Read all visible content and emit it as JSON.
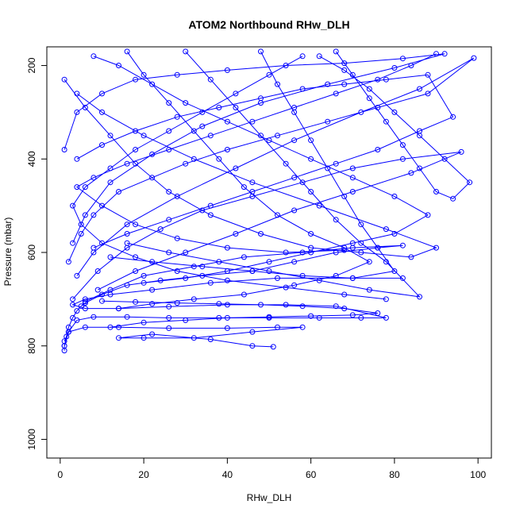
{
  "chart_data": {
    "type": "line",
    "title": "ATOM2 Northbound RHw_DLH",
    "xlabel": "RHw_DLH",
    "ylabel": "Pressure (mbar)",
    "xlim": [
      0,
      100
    ],
    "ylim": [
      1040,
      160
    ],
    "y_reversed": true,
    "x_ticks": [
      0,
      20,
      40,
      60,
      80,
      100
    ],
    "y_ticks": [
      200,
      400,
      600,
      800,
      1000
    ],
    "grid": false,
    "legend": "none",
    "marker": "open-circle",
    "color": "#0000ff",
    "series": [
      {
        "points": [
          [
            1,
            810
          ],
          [
            1,
            800
          ],
          [
            1.5,
            780
          ],
          [
            2,
            760
          ],
          [
            3,
            740
          ],
          [
            4,
            725
          ],
          [
            5,
            715
          ],
          [
            6,
            708
          ],
          [
            10,
            690
          ],
          [
            16,
            670
          ],
          [
            24,
            660
          ],
          [
            34,
            650
          ],
          [
            46,
            640
          ],
          [
            56,
            620
          ],
          [
            66,
            600
          ],
          [
            76,
            590
          ],
          [
            82,
            585
          ],
          [
            70,
            590
          ],
          [
            58,
            600
          ],
          [
            44,
            610
          ],
          [
            32,
            630
          ],
          [
            20,
            650
          ],
          [
            12,
            680
          ],
          [
            6,
            705
          ]
        ]
      },
      {
        "points": [
          [
            1,
            800
          ],
          [
            2,
            770
          ],
          [
            4,
            745
          ],
          [
            8,
            738
          ],
          [
            16,
            738
          ],
          [
            26,
            740
          ],
          [
            38,
            740
          ],
          [
            50,
            740
          ],
          [
            62,
            740
          ],
          [
            72,
            740
          ],
          [
            78,
            740
          ],
          [
            66,
            715
          ],
          [
            54,
            712
          ],
          [
            40,
            712
          ],
          [
            26,
            716
          ],
          [
            14,
            720
          ],
          [
            6,
            720
          ],
          [
            3,
            712
          ],
          [
            6,
            700
          ],
          [
            12,
            690
          ],
          [
            22,
            680
          ],
          [
            36,
            665
          ],
          [
            52,
            655
          ],
          [
            70,
            655
          ],
          [
            82,
            655
          ]
        ]
      },
      {
        "points": [
          [
            1,
            790
          ],
          [
            2,
            770
          ],
          [
            6,
            760
          ],
          [
            14,
            760
          ],
          [
            26,
            762
          ],
          [
            40,
            762
          ],
          [
            52,
            760
          ],
          [
            58,
            760
          ],
          [
            46,
            770
          ],
          [
            32,
            783
          ],
          [
            20,
            783
          ],
          [
            14,
            783
          ],
          [
            22,
            775
          ],
          [
            36,
            786
          ],
          [
            46,
            800
          ],
          [
            51,
            802
          ]
        ]
      },
      {
        "points": [
          [
            2,
            620
          ],
          [
            5,
            560
          ],
          [
            8,
            520
          ],
          [
            14,
            470
          ],
          [
            22,
            440
          ],
          [
            30,
            410
          ],
          [
            40,
            380
          ],
          [
            52,
            350
          ],
          [
            64,
            320
          ],
          [
            76,
            290
          ],
          [
            88,
            260
          ],
          [
            99,
            184
          ],
          [
            86,
            250
          ],
          [
            72,
            300
          ],
          [
            56,
            360
          ],
          [
            42,
            420
          ],
          [
            28,
            480
          ],
          [
            16,
            540
          ],
          [
            8,
            600
          ],
          [
            4,
            650
          ]
        ]
      },
      {
        "points": [
          [
            1,
            380
          ],
          [
            4,
            300
          ],
          [
            10,
            260
          ],
          [
            18,
            230
          ],
          [
            28,
            220
          ],
          [
            40,
            210
          ],
          [
            54,
            200
          ],
          [
            68,
            195
          ],
          [
            82,
            185
          ],
          [
            92,
            175
          ],
          [
            80,
            205
          ],
          [
            64,
            240
          ],
          [
            48,
            280
          ],
          [
            34,
            330
          ],
          [
            22,
            390
          ],
          [
            12,
            450
          ],
          [
            6,
            520
          ],
          [
            3,
            580
          ]
        ]
      },
      {
        "points": [
          [
            1,
            230
          ],
          [
            6,
            290
          ],
          [
            12,
            350
          ],
          [
            18,
            410
          ],
          [
            26,
            470
          ],
          [
            36,
            520
          ],
          [
            48,
            560
          ],
          [
            60,
            590
          ],
          [
            72,
            600
          ],
          [
            84,
            610
          ],
          [
            90,
            590
          ],
          [
            78,
            550
          ],
          [
            62,
            500
          ],
          [
            46,
            450
          ],
          [
            32,
            400
          ],
          [
            20,
            350
          ],
          [
            10,
            300
          ],
          [
            4,
            260
          ]
        ]
      },
      {
        "points": [
          [
            3,
            700
          ],
          [
            9,
            640
          ],
          [
            16,
            590
          ],
          [
            24,
            550
          ],
          [
            34,
            510
          ],
          [
            46,
            480
          ],
          [
            58,
            450
          ],
          [
            70,
            420
          ],
          [
            82,
            400
          ],
          [
            96,
            385
          ],
          [
            84,
            430
          ],
          [
            70,
            470
          ],
          [
            56,
            510
          ],
          [
            42,
            560
          ],
          [
            30,
            600
          ],
          [
            18,
            640
          ],
          [
            9,
            680
          ]
        ]
      },
      {
        "points": [
          [
            16,
            170
          ],
          [
            20,
            220
          ],
          [
            26,
            280
          ],
          [
            32,
            340
          ],
          [
            38,
            400
          ],
          [
            44,
            460
          ],
          [
            52,
            520
          ],
          [
            60,
            560
          ],
          [
            68,
            590
          ],
          [
            74,
            620
          ],
          [
            66,
            650
          ],
          [
            56,
            670
          ],
          [
            44,
            690
          ],
          [
            32,
            700
          ],
          [
            22,
            710
          ],
          [
            14,
            720
          ]
        ]
      },
      {
        "points": [
          [
            30,
            170
          ],
          [
            36,
            230
          ],
          [
            42,
            290
          ],
          [
            48,
            350
          ],
          [
            54,
            410
          ],
          [
            60,
            470
          ],
          [
            66,
            530
          ],
          [
            72,
            580
          ],
          [
            78,
            620
          ],
          [
            86,
            695
          ],
          [
            74,
            680
          ],
          [
            62,
            660
          ],
          [
            50,
            640
          ],
          [
            38,
            620
          ],
          [
            26,
            600
          ],
          [
            16,
            580
          ]
        ]
      },
      {
        "points": [
          [
            48,
            170
          ],
          [
            52,
            240
          ],
          [
            56,
            300
          ],
          [
            60,
            360
          ],
          [
            64,
            420
          ],
          [
            68,
            480
          ],
          [
            72,
            540
          ],
          [
            76,
            590
          ],
          [
            80,
            640
          ],
          [
            70,
            655
          ],
          [
            58,
            650
          ],
          [
            46,
            640
          ],
          [
            34,
            630
          ],
          [
            22,
            620
          ],
          [
            12,
            610
          ]
        ]
      },
      {
        "points": [
          [
            66,
            170
          ],
          [
            70,
            220
          ],
          [
            74,
            270
          ],
          [
            78,
            320
          ],
          [
            82,
            370
          ],
          [
            86,
            420
          ],
          [
            90,
            470
          ],
          [
            94,
            485
          ],
          [
            98,
            450
          ],
          [
            92,
            400
          ],
          [
            86,
            350
          ],
          [
            80,
            300
          ],
          [
            74,
            250
          ],
          [
            68,
            210
          ],
          [
            62,
            180
          ]
        ]
      },
      {
        "points": [
          [
            90,
            175
          ],
          [
            84,
            200
          ],
          [
            76,
            230
          ],
          [
            66,
            260
          ],
          [
            56,
            290
          ],
          [
            46,
            320
          ],
          [
            36,
            350
          ],
          [
            26,
            380
          ],
          [
            16,
            410
          ],
          [
            8,
            440
          ],
          [
            4,
            460
          ],
          [
            10,
            500
          ],
          [
            18,
            540
          ],
          [
            28,
            570
          ],
          [
            40,
            590
          ],
          [
            54,
            600
          ],
          [
            68,
            595
          ]
        ]
      },
      {
        "points": [
          [
            8,
            180
          ],
          [
            14,
            200
          ],
          [
            22,
            240
          ],
          [
            30,
            280
          ],
          [
            40,
            320
          ],
          [
            50,
            360
          ],
          [
            60,
            400
          ],
          [
            70,
            440
          ],
          [
            80,
            480
          ],
          [
            88,
            520
          ],
          [
            80,
            560
          ],
          [
            70,
            580
          ],
          [
            60,
            600
          ],
          [
            50,
            620
          ],
          [
            40,
            640
          ],
          [
            30,
            655
          ],
          [
            20,
            665
          ]
        ]
      },
      {
        "points": [
          [
            58,
            180
          ],
          [
            50,
            220
          ],
          [
            42,
            260
          ],
          [
            34,
            300
          ],
          [
            26,
            340
          ],
          [
            18,
            380
          ],
          [
            12,
            420
          ],
          [
            6,
            460
          ],
          [
            3,
            500
          ],
          [
            5,
            540
          ],
          [
            10,
            580
          ],
          [
            18,
            610
          ],
          [
            28,
            640
          ],
          [
            40,
            660
          ],
          [
            54,
            675
          ],
          [
            68,
            690
          ],
          [
            78,
            700
          ]
        ]
      },
      {
        "points": [
          [
            4,
            400
          ],
          [
            10,
            370
          ],
          [
            18,
            340
          ],
          [
            28,
            310
          ],
          [
            38,
            290
          ],
          [
            48,
            270
          ],
          [
            58,
            250
          ],
          [
            68,
            240
          ],
          [
            78,
            230
          ],
          [
            88,
            220
          ],
          [
            94,
            310
          ],
          [
            86,
            340
          ],
          [
            76,
            380
          ],
          [
            66,
            410
          ],
          [
            56,
            440
          ],
          [
            46,
            470
          ],
          [
            36,
            500
          ],
          [
            26,
            530
          ],
          [
            16,
            560
          ],
          [
            8,
            590
          ]
        ]
      },
      {
        "points": [
          [
            12,
            760
          ],
          [
            20,
            750
          ],
          [
            30,
            745
          ],
          [
            40,
            740
          ],
          [
            50,
            738
          ],
          [
            60,
            736
          ],
          [
            70,
            734
          ],
          [
            76,
            730
          ],
          [
            68,
            720
          ],
          [
            58,
            715
          ],
          [
            48,
            712
          ],
          [
            38,
            710
          ],
          [
            28,
            708
          ],
          [
            18,
            706
          ],
          [
            10,
            704
          ]
        ]
      }
    ]
  }
}
